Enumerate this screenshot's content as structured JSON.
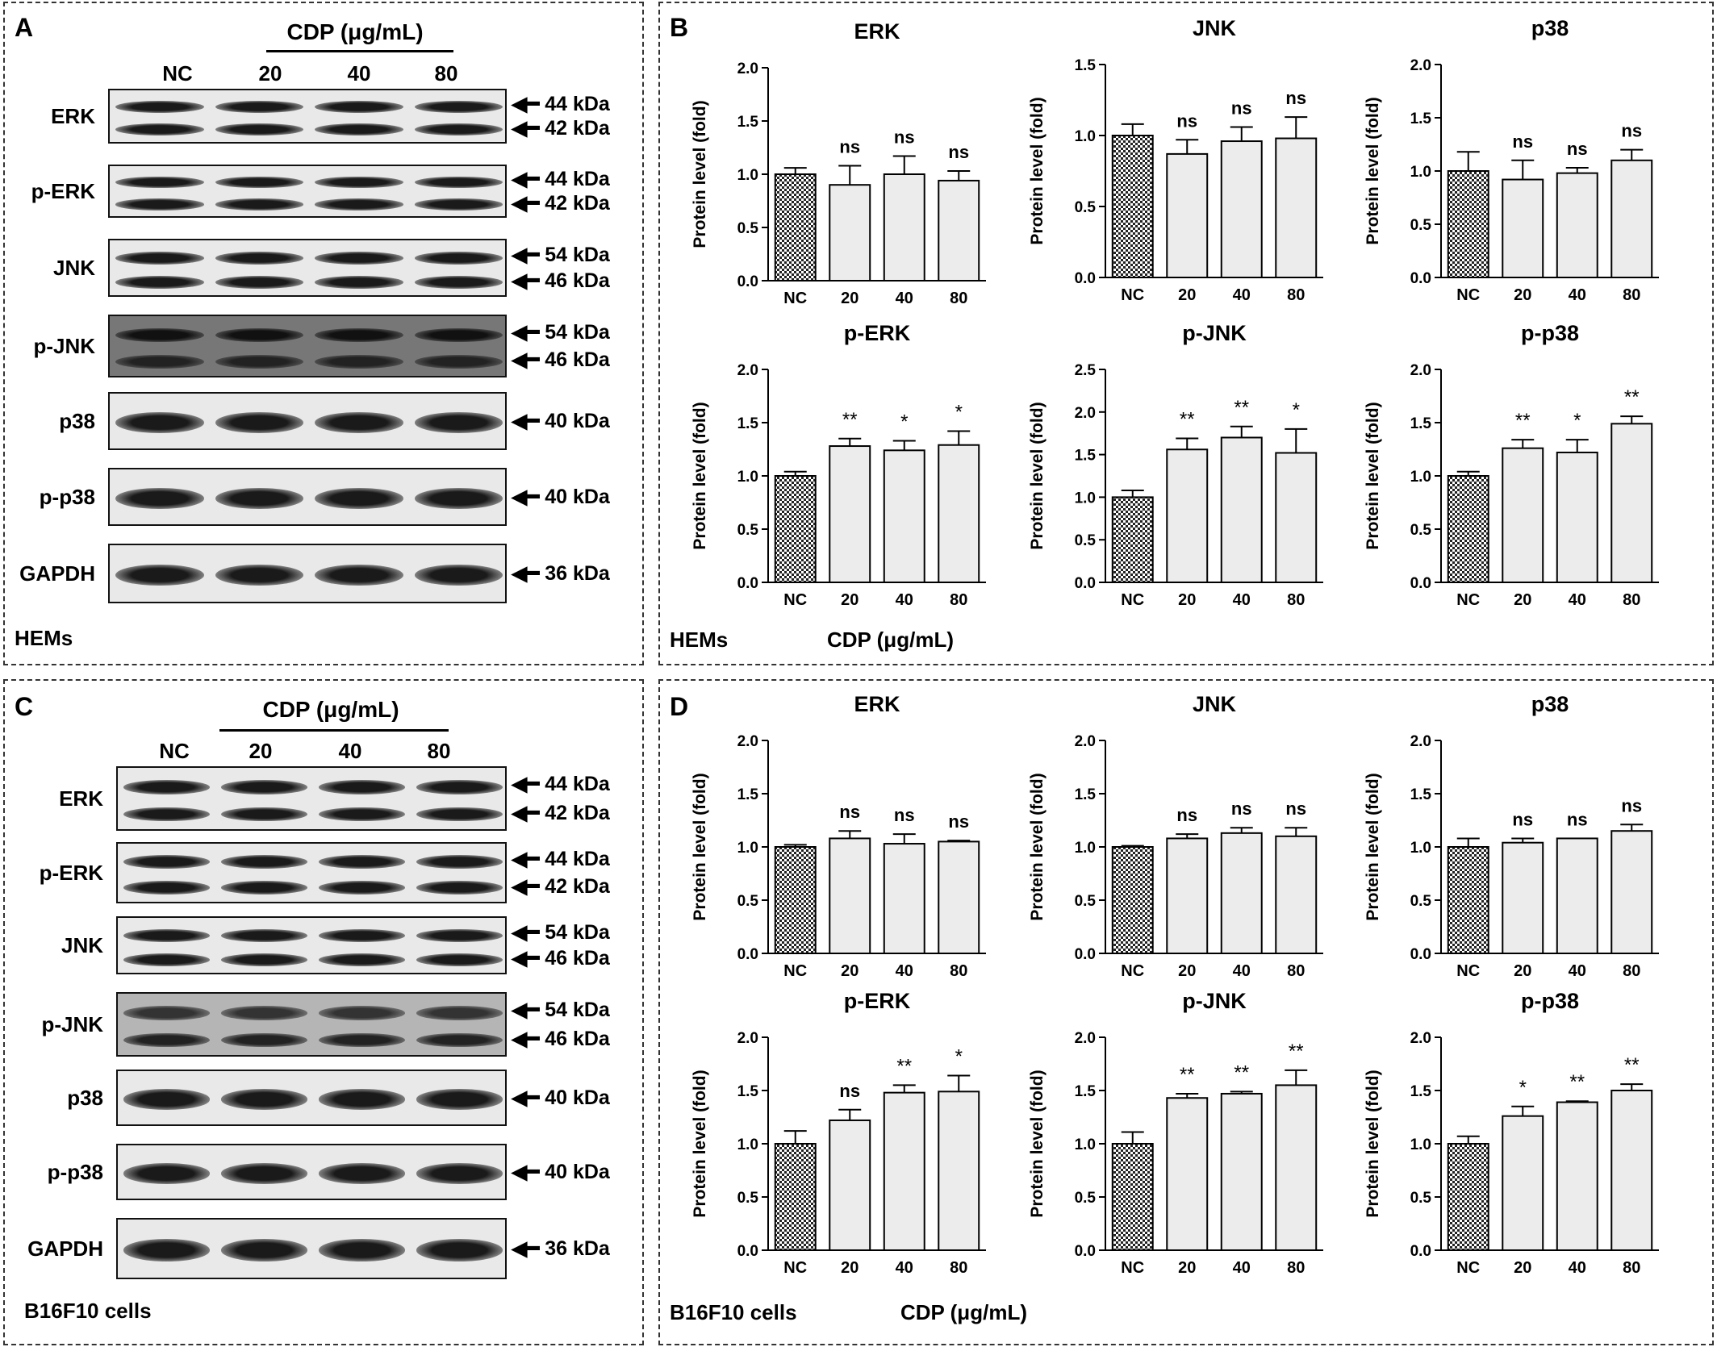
{
  "panels": {
    "A": {
      "letter": "A",
      "cdp_header": "CDP (μg/mL)",
      "lanes": [
        "NC",
        "20",
        "40",
        "80"
      ],
      "cell_label": "HEMs",
      "blots": [
        {
          "name": "ERK",
          "markers": [
            "44 kDa",
            "42 kDa"
          ]
        },
        {
          "name": "p-ERK",
          "markers": [
            "44 kDa",
            "42 kDa"
          ]
        },
        {
          "name": "JNK",
          "markers": [
            "54 kDa",
            "46 kDa"
          ]
        },
        {
          "name": "p-JNK",
          "markers": [
            "54 kDa",
            "46 kDa"
          ]
        },
        {
          "name": "p38",
          "markers": [
            "40 kDa"
          ]
        },
        {
          "name": "p-p38",
          "markers": [
            "40 kDa"
          ]
        },
        {
          "name": "GAPDH",
          "markers": [
            "36 kDa"
          ]
        }
      ]
    },
    "B": {
      "letter": "B",
      "cell_label": "HEMs",
      "cdp_label": "CDP (μg/mL)"
    },
    "C": {
      "letter": "C",
      "cdp_header": "CDP (μg/mL)",
      "lanes": [
        "NC",
        "20",
        "40",
        "80"
      ],
      "cell_label": "B16F10 cells",
      "blots": [
        {
          "name": "ERK",
          "markers": [
            "44 kDa",
            "42 kDa"
          ]
        },
        {
          "name": "p-ERK",
          "markers": [
            "44 kDa",
            "42 kDa"
          ]
        },
        {
          "name": "JNK",
          "markers": [
            "54 kDa",
            "46 kDa"
          ]
        },
        {
          "name": "p-JNK",
          "markers": [
            "54 kDa",
            "46 kDa"
          ]
        },
        {
          "name": "p38",
          "markers": [
            "40 kDa"
          ]
        },
        {
          "name": "p-p38",
          "markers": [
            "40 kDa"
          ]
        },
        {
          "name": "GAPDH",
          "markers": [
            "36 kDa"
          ]
        }
      ]
    },
    "D": {
      "letter": "D",
      "cell_label": "B16F10 cells",
      "cdp_label": "CDP (μg/mL)"
    }
  },
  "colors": {
    "nc_fill": "#555555",
    "bar_fill": "#ececec",
    "stroke": "#000000"
  },
  "chart_data": [
    {
      "panel": "B",
      "type": "bar",
      "title": "ERK",
      "ylabel": "Protein level (fold)",
      "categories": [
        "NC",
        "20",
        "40",
        "80"
      ],
      "values": [
        1.0,
        0.9,
        1.0,
        0.94
      ],
      "errors": [
        0.06,
        0.18,
        0.17,
        0.09
      ],
      "annotations": [
        "",
        "ns",
        "ns",
        "ns"
      ],
      "ylim": [
        0,
        2.0
      ],
      "yticks": [
        "0.0",
        "0.5",
        "1.0",
        "1.5",
        "2.0"
      ]
    },
    {
      "panel": "B",
      "type": "bar",
      "title": "JNK",
      "ylabel": "Protein level (fold)",
      "categories": [
        "NC",
        "20",
        "40",
        "80"
      ],
      "values": [
        1.0,
        0.87,
        0.96,
        0.98
      ],
      "errors": [
        0.08,
        0.1,
        0.1,
        0.15
      ],
      "annotations": [
        "",
        "ns",
        "ns",
        "ns"
      ],
      "ylim": [
        0,
        1.5
      ],
      "yticks": [
        "0.0",
        "0.5",
        "1.0",
        "1.5"
      ]
    },
    {
      "panel": "B",
      "type": "bar",
      "title": "p38",
      "ylabel": "Protein level (fold)",
      "categories": [
        "NC",
        "20",
        "40",
        "80"
      ],
      "values": [
        1.0,
        0.92,
        0.98,
        1.1
      ],
      "errors": [
        0.18,
        0.18,
        0.05,
        0.1
      ],
      "annotations": [
        "",
        "ns",
        "ns",
        "ns"
      ],
      "ylim": [
        0,
        2.0
      ],
      "yticks": [
        "0.0",
        "0.5",
        "1.0",
        "1.5",
        "2.0"
      ]
    },
    {
      "panel": "B",
      "type": "bar",
      "title": "p-ERK",
      "ylabel": "Protein level (fold)",
      "categories": [
        "NC",
        "20",
        "40",
        "80"
      ],
      "values": [
        1.0,
        1.28,
        1.24,
        1.29
      ],
      "errors": [
        0.04,
        0.07,
        0.09,
        0.13
      ],
      "annotations": [
        "",
        "**",
        "*",
        "*"
      ],
      "ylim": [
        0,
        2.0
      ],
      "yticks": [
        "0.0",
        "0.5",
        "1.0",
        "1.5",
        "2.0"
      ]
    },
    {
      "panel": "B",
      "type": "bar",
      "title": "p-JNK",
      "ylabel": "Protein level (fold)",
      "categories": [
        "NC",
        "20",
        "40",
        "80"
      ],
      "values": [
        1.0,
        1.56,
        1.7,
        1.52
      ],
      "errors": [
        0.08,
        0.13,
        0.13,
        0.28
      ],
      "annotations": [
        "",
        "**",
        "**",
        "*"
      ],
      "ylim": [
        0,
        2.5
      ],
      "yticks": [
        "0.0",
        "0.5",
        "1.0",
        "1.5",
        "2.0",
        "2.5"
      ]
    },
    {
      "panel": "B",
      "type": "bar",
      "title": "p-p38",
      "ylabel": "Protein level (fold)",
      "categories": [
        "NC",
        "20",
        "40",
        "80"
      ],
      "values": [
        1.0,
        1.26,
        1.22,
        1.49
      ],
      "errors": [
        0.04,
        0.08,
        0.12,
        0.07
      ],
      "annotations": [
        "",
        "**",
        "*",
        "**"
      ],
      "ylim": [
        0,
        2.0
      ],
      "yticks": [
        "0.0",
        "0.5",
        "1.0",
        "1.5",
        "2.0"
      ]
    },
    {
      "panel": "D",
      "type": "bar",
      "title": "ERK",
      "ylabel": "Protein level (fold)",
      "categories": [
        "NC",
        "20",
        "40",
        "80"
      ],
      "values": [
        1.0,
        1.08,
        1.03,
        1.05
      ],
      "errors": [
        0.02,
        0.07,
        0.09,
        0.01
      ],
      "annotations": [
        "",
        "ns",
        "ns",
        "ns"
      ],
      "ylim": [
        0,
        2.0
      ],
      "yticks": [
        "0.0",
        "0.5",
        "1.0",
        "1.5",
        "2.0"
      ]
    },
    {
      "panel": "D",
      "type": "bar",
      "title": "JNK",
      "ylabel": "Protein level (fold)",
      "categories": [
        "NC",
        "20",
        "40",
        "80"
      ],
      "values": [
        1.0,
        1.08,
        1.13,
        1.1
      ],
      "errors": [
        0.01,
        0.04,
        0.05,
        0.08
      ],
      "annotations": [
        "",
        "ns",
        "ns",
        "ns"
      ],
      "ylim": [
        0,
        2.0
      ],
      "yticks": [
        "0.0",
        "0.5",
        "1.0",
        "1.5",
        "2.0"
      ]
    },
    {
      "panel": "D",
      "type": "bar",
      "title": "p38",
      "ylabel": "Protein level (fold)",
      "categories": [
        "NC",
        "20",
        "40",
        "80"
      ],
      "values": [
        1.0,
        1.04,
        1.08,
        1.15
      ],
      "errors": [
        0.08,
        0.04,
        0.0,
        0.06
      ],
      "annotations": [
        "",
        "ns",
        "ns",
        "ns"
      ],
      "ylim": [
        0,
        2.0
      ],
      "yticks": [
        "0.0",
        "0.5",
        "1.0",
        "1.5",
        "2.0"
      ]
    },
    {
      "panel": "D",
      "type": "bar",
      "title": "p-ERK",
      "ylabel": "Protein level (fold)",
      "categories": [
        "NC",
        "20",
        "40",
        "80"
      ],
      "values": [
        1.0,
        1.22,
        1.48,
        1.49
      ],
      "errors": [
        0.12,
        0.1,
        0.07,
        0.15
      ],
      "annotations": [
        "",
        "ns",
        "**",
        "*"
      ],
      "ylim": [
        0,
        2.0
      ],
      "yticks": [
        "0.0",
        "0.5",
        "1.0",
        "1.5",
        "2.0"
      ]
    },
    {
      "panel": "D",
      "type": "bar",
      "title": "p-JNK",
      "ylabel": "Protein level (fold)",
      "categories": [
        "NC",
        "20",
        "40",
        "80"
      ],
      "values": [
        1.0,
        1.43,
        1.47,
        1.55
      ],
      "errors": [
        0.11,
        0.04,
        0.02,
        0.14
      ],
      "annotations": [
        "",
        "**",
        "**",
        "**"
      ],
      "ylim": [
        0,
        2.0
      ],
      "yticks": [
        "0.0",
        "0.5",
        "1.0",
        "1.5",
        "2.0"
      ]
    },
    {
      "panel": "D",
      "type": "bar",
      "title": "p-p38",
      "ylabel": "Protein level (fold)",
      "categories": [
        "NC",
        "20",
        "40",
        "80"
      ],
      "values": [
        1.0,
        1.26,
        1.39,
        1.5
      ],
      "errors": [
        0.07,
        0.09,
        0.01,
        0.06
      ],
      "annotations": [
        "",
        "*",
        "**",
        "**"
      ],
      "ylim": [
        0,
        2.0
      ],
      "yticks": [
        "0.0",
        "0.5",
        "1.0",
        "1.5",
        "2.0"
      ]
    }
  ]
}
